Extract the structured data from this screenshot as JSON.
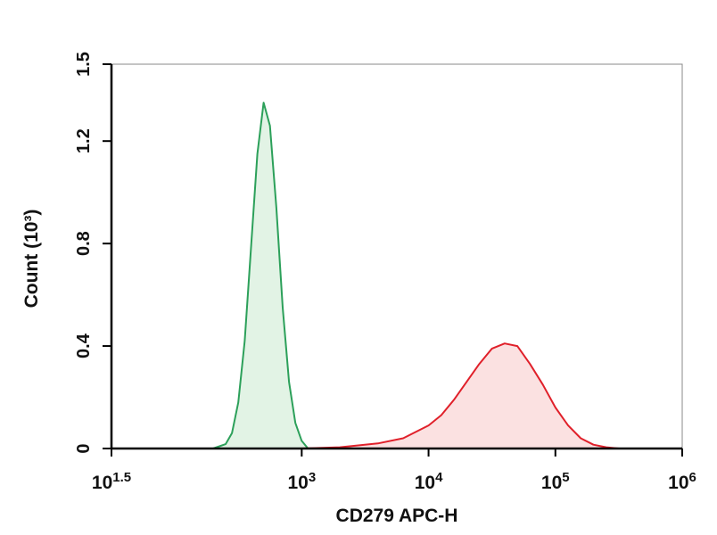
{
  "chart_data": {
    "type": "histogram-overlay",
    "xlabel": "CD279 APC-H",
    "ylabel": "Count (10³)",
    "xscale": "log",
    "xlim": [
      31.6227766,
      1000000
    ],
    "xticks": [
      {
        "value": 31.6227766,
        "label": "10",
        "exponent": "1.5"
      },
      {
        "value": 1000,
        "label": "10",
        "exponent": "3"
      },
      {
        "value": 10000,
        "label": "10",
        "exponent": "4"
      },
      {
        "value": 100000,
        "label": "10",
        "exponent": "5"
      },
      {
        "value": 1000000,
        "label": "10",
        "exponent": "6"
      }
    ],
    "ylim": [
      0,
      1.5
    ],
    "yticks": [
      0,
      0.4,
      0.8,
      1.2,
      1.5
    ],
    "series": [
      {
        "color": "#2ca05a",
        "fill": "#e2f3e5",
        "x": [
          200,
          251,
          282,
          316,
          355,
          398,
          447,
          501,
          562,
          631,
          708,
          794,
          891,
          1000,
          1122
        ],
        "values": [
          0,
          0.017,
          0.06,
          0.18,
          0.42,
          0.78,
          1.15,
          1.35,
          1.26,
          0.94,
          0.55,
          0.26,
          0.1,
          0.03,
          0
        ]
      },
      {
        "color": "#e0202a",
        "fill": "#fbe1e1",
        "x": [
          1000,
          1995,
          3981,
          6310,
          10000,
          12589,
          15849,
          19953,
          25119,
          31623,
          39811,
          50119,
          63096,
          79433,
          100000,
          125893,
          158489,
          199526,
          251189,
          316228
        ],
        "values": [
          0,
          0.005,
          0.02,
          0.04,
          0.09,
          0.13,
          0.19,
          0.26,
          0.33,
          0.39,
          0.41,
          0.4,
          0.33,
          0.25,
          0.16,
          0.09,
          0.04,
          0.015,
          0.005,
          0
        ]
      }
    ]
  }
}
